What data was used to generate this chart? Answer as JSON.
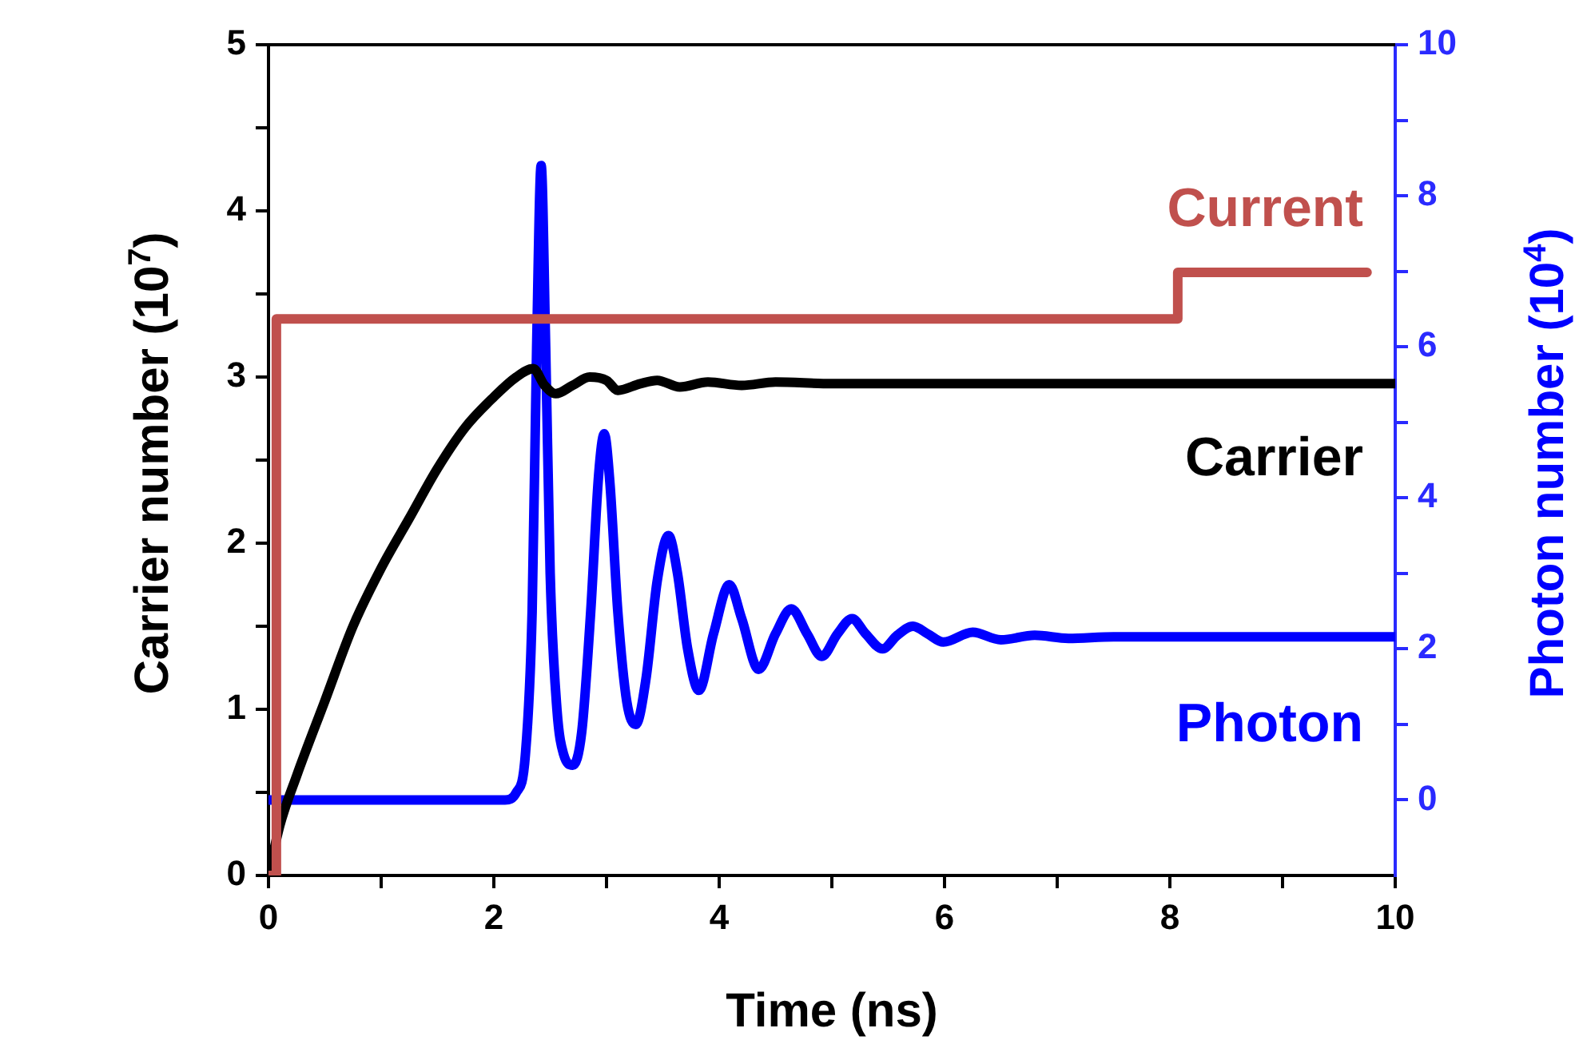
{
  "chart_data": {
    "type": "line",
    "xlabel": "Time (ns)",
    "ylabel": "Carrier number (10$^{7}$)",
    "y2label": "Photon number (10$^{4}$)",
    "xlim": [
      0,
      10
    ],
    "xticks": [
      0,
      {
        "value": 1,
        "label": null
      },
      2,
      {
        "value": 3,
        "label": null
      },
      4,
      {
        "value": 5,
        "label": null
      },
      6,
      {
        "value": 7,
        "label": null
      },
      8,
      {
        "value": 9,
        "label": null
      },
      10
    ],
    "ylim": [
      0,
      5
    ],
    "yticks": [
      0,
      {
        "value": 0.5,
        "label": null
      },
      1,
      {
        "value": 1.5,
        "label": null
      },
      2,
      {
        "value": 2.5,
        "label": null
      },
      3,
      {
        "value": 3.5,
        "label": null
      },
      4,
      {
        "value": 4.5,
        "label": null
      },
      5
    ],
    "y2lim": [
      -1,
      10
    ],
    "y2ticks": [
      0,
      {
        "value": 1,
        "label": null
      },
      2,
      {
        "value": 3,
        "label": null
      },
      4,
      {
        "value": 5,
        "label": null
      },
      6,
      {
        "value": 7,
        "label": null
      },
      8,
      {
        "value": 9,
        "label": null
      },
      10
    ],
    "grid": false,
    "legend": false,
    "marker": "none",
    "line_style": "solid",
    "series": [
      {
        "name": "Current",
        "color": "#c0504d",
        "axis": "y",
        "x": [
          0,
          0.07,
          0.07,
          8.07,
          8.07,
          9.75
        ],
        "values": [
          0,
          0,
          3.35,
          3.35,
          3.63,
          3.63
        ]
      },
      {
        "name": "Carrier",
        "color": "#000000",
        "axis": "y",
        "x": [
          0,
          0.1,
          0.25,
          0.5,
          0.75,
          1,
          1.25,
          1.5,
          1.75,
          2,
          2.2,
          2.35,
          2.45,
          2.55,
          2.7,
          2.85,
          3,
          3.1,
          3.3,
          3.45,
          3.65,
          3.9,
          4.2,
          4.5,
          5,
          6,
          7,
          8,
          9,
          10
        ],
        "values": [
          0,
          0.3,
          0.6,
          1.05,
          1.5,
          1.85,
          2.15,
          2.45,
          2.7,
          2.88,
          3,
          3.05,
          2.95,
          2.9,
          2.95,
          3,
          2.98,
          2.92,
          2.96,
          2.98,
          2.94,
          2.97,
          2.95,
          2.97,
          2.96,
          2.96,
          2.96,
          2.96,
          2.96,
          2.96
        ]
      },
      {
        "name": "Photon",
        "color": "#0000ff",
        "axis": "y2",
        "x": [
          0,
          1,
          2,
          2.1,
          2.2,
          2.28,
          2.34,
          2.38,
          2.42,
          2.46,
          2.5,
          2.56,
          2.62,
          2.7,
          2.78,
          2.86,
          2.93,
          2.98,
          3.03,
          3.1,
          3.18,
          3.26,
          3.35,
          3.45,
          3.55,
          3.63,
          3.72,
          3.82,
          3.95,
          4.09,
          4.2,
          4.35,
          4.5,
          4.64,
          4.78,
          4.91,
          5.05,
          5.18,
          5.3,
          5.45,
          5.58,
          5.72,
          5.85,
          5.99,
          6.25,
          6.5,
          6.8,
          7.1,
          7.5,
          8,
          9,
          10
        ],
        "values": [
          0,
          0,
          0,
          0,
          0.1,
          0.6,
          2.5,
          6,
          8.4,
          6,
          3,
          1.2,
          0.6,
          0.46,
          0.9,
          2.5,
          4.3,
          4.85,
          4.2,
          2.5,
          1.3,
          1,
          1.6,
          2.9,
          3.5,
          3,
          2,
          1.45,
          2.2,
          2.85,
          2.4,
          1.73,
          2.2,
          2.53,
          2.2,
          1.9,
          2.2,
          2.4,
          2.2,
          2,
          2.18,
          2.3,
          2.2,
          2.09,
          2.22,
          2.12,
          2.18,
          2.14,
          2.16,
          2.16,
          2.16,
          2.16
        ]
      }
    ]
  }
}
